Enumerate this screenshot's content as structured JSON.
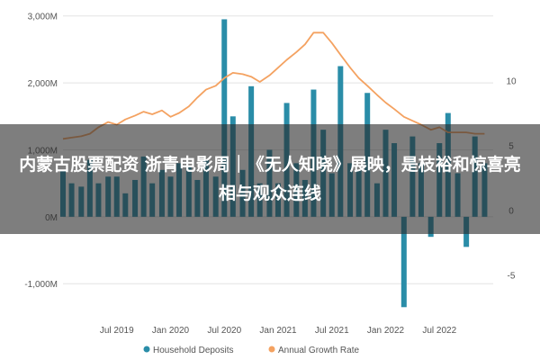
{
  "chart_data": {
    "type": "bar",
    "series": [
      {
        "name": "Household Deposits",
        "type": "bar",
        "axis": "left",
        "color": "#2a8da8",
        "x": [
          2019.0,
          2019.08,
          2019.17,
          2019.25,
          2019.33,
          2019.42,
          2019.5,
          2019.58,
          2019.67,
          2019.75,
          2019.83,
          2019.92,
          2020.0,
          2020.08,
          2020.17,
          2020.25,
          2020.33,
          2020.42,
          2020.5,
          2020.58,
          2020.67,
          2020.75,
          2020.83,
          2020.92,
          2021.0,
          2021.08,
          2021.17,
          2021.25,
          2021.33,
          2021.42,
          2021.5,
          2021.58,
          2021.67,
          2021.75,
          2021.83,
          2021.92,
          2022.0,
          2022.08,
          2022.17,
          2022.25,
          2022.33,
          2022.42,
          2022.5,
          2022.58,
          2022.67,
          2022.75,
          2022.83,
          2022.92
        ],
        "values": [
          700,
          500,
          450,
          850,
          500,
          600,
          600,
          350,
          550,
          900,
          500,
          700,
          600,
          800,
          750,
          550,
          850,
          600,
          2950,
          1500,
          700,
          1950,
          500,
          1000,
          500,
          1700,
          800,
          550,
          1900,
          1300,
          650,
          2250,
          800,
          700,
          1850,
          500,
          1300,
          1100,
          -1350,
          1200,
          800,
          -300,
          1100,
          1550,
          650,
          -450,
          1200,
          800
        ]
      },
      {
        "name": "Annual Growth Rate",
        "type": "line",
        "axis": "right",
        "color": "#f4a261",
        "x": [
          2019.0,
          2019.08,
          2019.17,
          2019.25,
          2019.33,
          2019.42,
          2019.5,
          2019.58,
          2019.67,
          2019.75,
          2019.83,
          2019.92,
          2020.0,
          2020.08,
          2020.17,
          2020.25,
          2020.33,
          2020.42,
          2020.5,
          2020.58,
          2020.67,
          2020.75,
          2020.83,
          2020.92,
          2021.0,
          2021.08,
          2021.17,
          2021.25,
          2021.33,
          2021.42,
          2021.5,
          2021.58,
          2021.67,
          2021.75,
          2021.83,
          2021.92,
          2022.0,
          2022.08,
          2022.17,
          2022.25,
          2022.33,
          2022.42,
          2022.5,
          2022.58,
          2022.67,
          2022.75,
          2022.83,
          2022.92
        ],
        "values": [
          5.5,
          5.6,
          5.7,
          5.9,
          6.4,
          6.8,
          6.6,
          7.0,
          7.3,
          7.6,
          7.4,
          7.7,
          7.2,
          7.5,
          8.0,
          8.7,
          9.3,
          9.6,
          10.2,
          10.6,
          10.5,
          10.3,
          9.9,
          10.4,
          11.0,
          11.6,
          12.2,
          12.8,
          13.7,
          13.7,
          12.9,
          12.0,
          11.0,
          10.2,
          9.6,
          8.9,
          8.3,
          7.8,
          7.2,
          6.9,
          6.6,
          6.2,
          6.4,
          6.0,
          6.0,
          6.0,
          5.9,
          5.9
        ]
      }
    ],
    "y_left": {
      "ylim": [
        -1400,
        3050
      ],
      "ticks": [
        3000,
        2000,
        1000,
        0,
        -1000
      ],
      "tick_labels": [
        "3,000M",
        "2,000M",
        "1,000M",
        "0M",
        "-1,000M"
      ]
    },
    "y_right": {
      "ylim": [
        -7.75,
        15.25
      ],
      "ticks": [
        10,
        5,
        0,
        -5
      ],
      "tick_labels": [
        "10",
        "5",
        "0",
        "-5"
      ]
    },
    "x_axis": {
      "xlim": [
        2019.0,
        2023.0
      ],
      "ticks": [
        2019.5,
        2020.0,
        2020.5,
        2021.0,
        2021.5,
        2022.0,
        2022.5
      ],
      "tick_labels": [
        "Jul 2019",
        "Jan 2020",
        "Jul 2020",
        "Jan 2021",
        "Jul 2021",
        "Jan 2022",
        "Jul 2022"
      ]
    },
    "grid": "horizontal",
    "legend_position": "bottom",
    "legend": [
      "Household Deposits",
      "Annual Growth Rate"
    ]
  },
  "overlay": {
    "title": "内蒙古股票配资 浙青电影周｜《无人知晓》展映，是枝裕和惊喜亮相与观众连线"
  }
}
